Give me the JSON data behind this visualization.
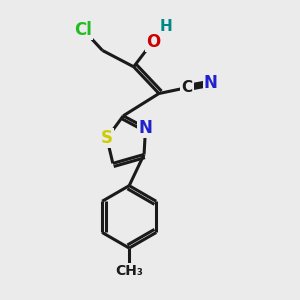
{
  "bg_color": "#ebebeb",
  "bond_color": "#1a1a1a",
  "bond_width": 2.2,
  "atom_colors": {
    "Cl": "#22bb22",
    "H": "#008888",
    "O": "#cc0000",
    "N": "#2222cc",
    "S": "#cccc00",
    "C": "#1a1a1a"
  },
  "font_size": 11,
  "fig_size": [
    3.0,
    3.0
  ],
  "dpi": 100,
  "xlim": [
    0,
    10
  ],
  "ylim": [
    0,
    10
  ]
}
